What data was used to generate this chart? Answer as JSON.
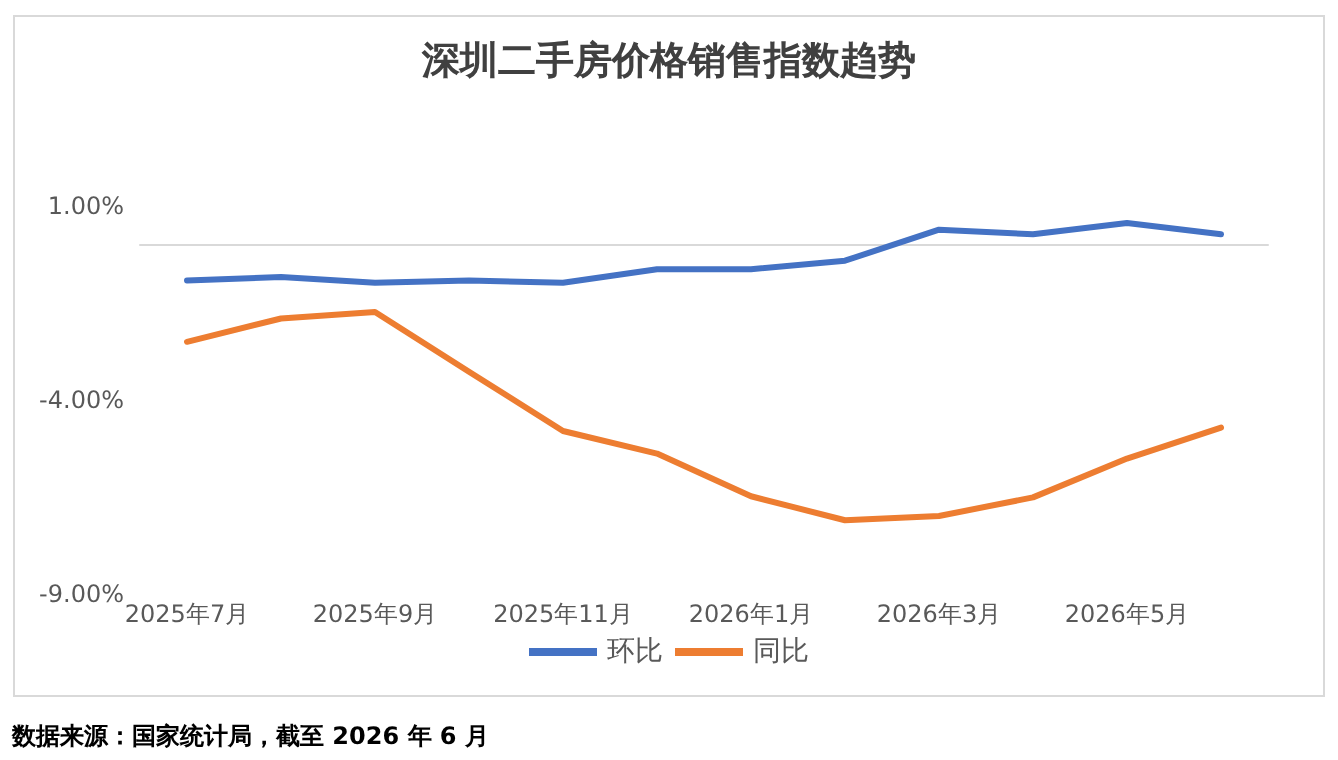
{
  "chart_data": {
    "type": "line",
    "title": "深圳二手房价格销售指数趋势",
    "categories": [
      "2025年7月",
      null,
      "2025年9月",
      null,
      "2025年11月",
      null,
      "2026年1月",
      null,
      "2026年3月",
      null,
      "2026年5月",
      null
    ],
    "series": [
      {
        "name": "环比",
        "color": "#4472c4",
        "values": [
          -0.92,
          -0.83,
          -0.98,
          -0.92,
          -0.98,
          -0.63,
          -0.63,
          -0.41,
          0.39,
          0.27,
          0.56,
          0.27
        ]
      },
      {
        "name": "同比",
        "color": "#ed7d31",
        "values": [
          -2.5,
          -1.9,
          -1.73,
          -3.27,
          -4.8,
          -5.38,
          -6.48,
          -7.1,
          -6.99,
          -6.51,
          -5.51,
          -4.71
        ]
      }
    ],
    "ylim": [
      -9,
      1
    ],
    "yticks": [
      {
        "value": -9,
        "label": "-9.00%"
      },
      {
        "value": -4,
        "label": "-4.00%"
      },
      {
        "value": 1,
        "label": "1.00%"
      }
    ],
    "legend": "bottom",
    "marker": "none",
    "line_style": "solid",
    "annotations": [
      "数据来源：国家统计局，截至 2026 年 6 月"
    ]
  }
}
